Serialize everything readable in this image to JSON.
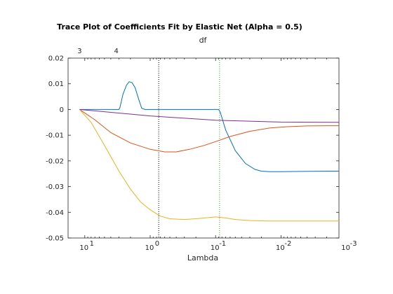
{
  "chart_data": {
    "type": "line",
    "title": "Trace Plot of Coefficients Fit by Elastic Net (Alpha = 0.5)",
    "xlabel": "Lambda",
    "ylabel": "",
    "top_axis_label": "df",
    "x_scale": "log",
    "x_reversed": true,
    "xlim": [
      18,
      0.0013
    ],
    "ylim": [
      -0.05,
      0.02
    ],
    "x_ticks": [
      {
        "value": 10,
        "base": "10",
        "exp": "1"
      },
      {
        "value": 1,
        "base": "10",
        "exp": "0"
      },
      {
        "value": 0.1,
        "base": "10",
        "exp": "-1"
      },
      {
        "value": 0.01,
        "base": "10",
        "exp": "-2"
      },
      {
        "value": 0.001,
        "base": "10",
        "exp": "-3"
      }
    ],
    "y_ticks": [
      {
        "value": 0.02,
        "label": "0.02"
      },
      {
        "value": 0.01,
        "label": "0.01"
      },
      {
        "value": 0,
        "label": "0"
      },
      {
        "value": -0.01,
        "label": "-0.01"
      },
      {
        "value": -0.02,
        "label": "-0.02"
      },
      {
        "value": -0.03,
        "label": "-0.03"
      },
      {
        "value": -0.04,
        "label": "-0.04"
      },
      {
        "value": -0.05,
        "label": "-0.05"
      }
    ],
    "top_ticks": [
      {
        "x": 12,
        "label": "3"
      },
      {
        "x": 3.3,
        "label": "4"
      }
    ],
    "vlines": [
      {
        "x": 0.74,
        "color": "#000000"
      },
      {
        "x": 0.087,
        "color": "#2ca02c"
      }
    ],
    "grid": false,
    "series": [
      {
        "color": "#0072BD",
        "x": [
          12,
          8,
          5,
          3,
          2.9,
          2.6,
          2.3,
          2.1,
          1.9,
          1.7,
          1.5,
          1.35,
          1.2,
          1.05,
          0.5,
          0.2,
          0.1,
          0.09,
          0.085,
          0.07,
          0.05,
          0.035,
          0.025,
          0.02,
          0.015,
          0.01,
          0.005,
          0.002,
          0.0013
        ],
        "y": [
          0,
          0,
          0,
          0,
          0.0008,
          0.006,
          0.0095,
          0.0108,
          0.0105,
          0.0085,
          0.004,
          0.0005,
          0,
          0,
          0,
          0,
          0,
          0,
          -0.001,
          -0.008,
          -0.016,
          -0.021,
          -0.0233,
          -0.024,
          -0.0242,
          -0.0242,
          -0.0241,
          -0.024,
          -0.024
        ]
      },
      {
        "color": "#D95319",
        "x": [
          12,
          7,
          4,
          2,
          1,
          0.6,
          0.4,
          0.25,
          0.15,
          0.1,
          0.06,
          0.03,
          0.015,
          0.008,
          0.004,
          0.002,
          0.0013
        ],
        "y": [
          0,
          -0.004,
          -0.009,
          -0.013,
          -0.0155,
          -0.0165,
          -0.0165,
          -0.0155,
          -0.014,
          -0.0125,
          -0.0105,
          -0.0085,
          -0.0072,
          -0.0067,
          -0.0064,
          -0.0063,
          -0.0063
        ]
      },
      {
        "color": "#EDB120",
        "x": [
          12,
          8,
          5,
          3,
          2,
          1.4,
          1,
          0.7,
          0.5,
          0.3,
          0.2,
          0.1,
          0.07,
          0.05,
          0.03,
          0.015,
          0.008,
          0.004,
          0.002,
          0.0013
        ],
        "y": [
          0,
          -0.005,
          -0.014,
          -0.024,
          -0.031,
          -0.036,
          -0.039,
          -0.0415,
          -0.0425,
          -0.0428,
          -0.0425,
          -0.0418,
          -0.0422,
          -0.0428,
          -0.0432,
          -0.0434,
          -0.0434,
          -0.0434,
          -0.0434,
          -0.0434
        ]
      },
      {
        "color": "#7E2F8E",
        "x": [
          12,
          1,
          0.1,
          0.01,
          0.0013
        ],
        "y": [
          0,
          -0.0025,
          -0.0042,
          -0.0049,
          -0.005
        ]
      }
    ]
  }
}
